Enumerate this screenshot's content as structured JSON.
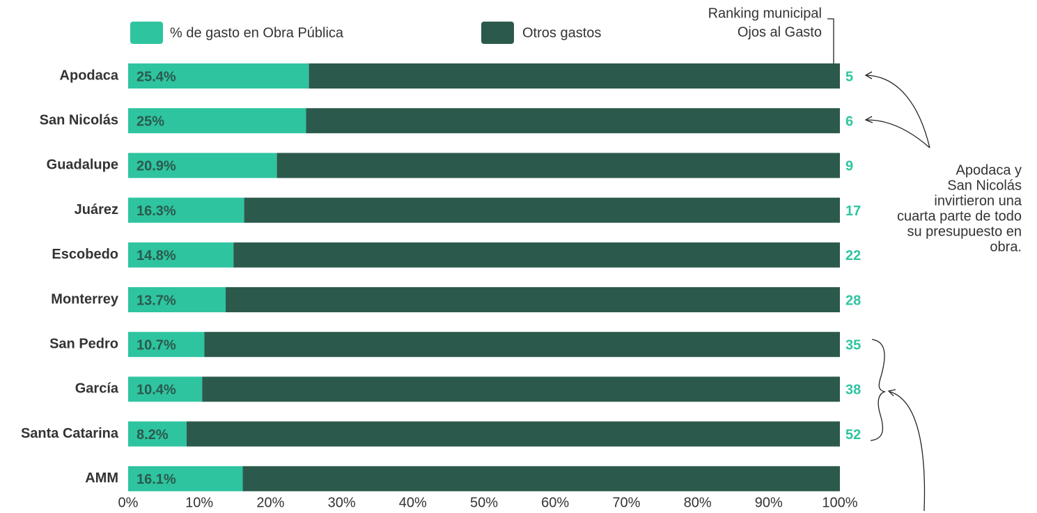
{
  "chart_data": {
    "type": "stacked-bar-horizontal",
    "ranking_title": [
      "Ranking municipal",
      "Ojos al Gasto"
    ],
    "annotation": [
      "Apodaca y",
      "San Nicolás",
      "invirtieron una",
      "cuarta parte de todo",
      "su  presupuesto en",
      "obra."
    ],
    "categories": [
      "Apodaca",
      "San Nicolás",
      "Guadalupe",
      "Juárez",
      "Escobedo",
      "Monterrey",
      "San Pedro",
      "García",
      "Santa Catarina",
      "AMM"
    ],
    "series": [
      {
        "name": "% de gasto en Obra Pública",
        "color": "#2ec4a0",
        "values": [
          25.4,
          25,
          20.9,
          16.3,
          14.8,
          13.7,
          10.7,
          10.4,
          8.2,
          16.1
        ],
        "value_labels": [
          "25.4%",
          "25%",
          "20.9%",
          "16.3%",
          "14.8%",
          "13.7%",
          "10.7%",
          "10.4%",
          "8.2%",
          "16.1%"
        ]
      },
      {
        "name": "Otros gastos",
        "color": "#2b5a4c",
        "values": [
          74.6,
          75,
          79.1,
          83.7,
          85.2,
          86.3,
          89.3,
          89.6,
          91.8,
          83.9
        ]
      }
    ],
    "ranking": [
      5,
      6,
      9,
      17,
      22,
      28,
      35,
      38,
      52,
      null
    ],
    "ranking_color": "#2ec4a0",
    "xlim": [
      0,
      100
    ],
    "xticks": [
      {
        "value": 0,
        "label": "0%"
      },
      {
        "value": 10,
        "label": "10%"
      },
      {
        "value": 20,
        "label": "20%"
      },
      {
        "value": 30,
        "label": "30%"
      },
      {
        "value": 40,
        "label": "40%"
      },
      {
        "value": 50,
        "label": "50%"
      },
      {
        "value": 60,
        "label": "60%"
      },
      {
        "value": 70,
        "label": "70%"
      },
      {
        "value": 80,
        "label": "80%"
      },
      {
        "value": 90,
        "label": "90%"
      },
      {
        "value": 100,
        "label": "100%"
      }
    ]
  }
}
